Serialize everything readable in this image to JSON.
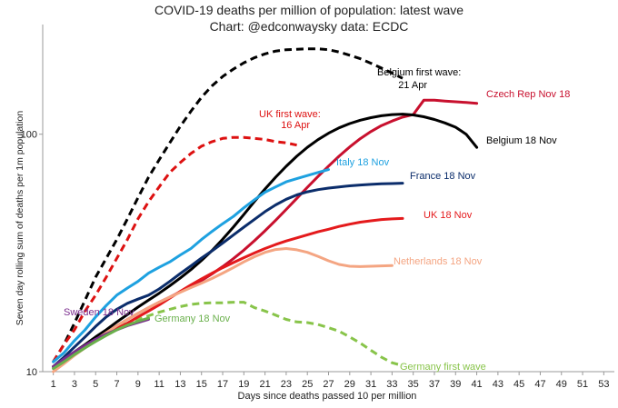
{
  "chart_data": {
    "type": "line",
    "title": "COVID-19 deaths per million of population: latest wave",
    "subtitle": "Chart: @edconwaysky data: ECDC",
    "xlabel": "Days since deaths passed 10 per million",
    "ylabel": "Seven day rolling sum of deaths per 1m population",
    "x_ticks": [
      1,
      3,
      5,
      7,
      9,
      11,
      13,
      15,
      17,
      19,
      21,
      23,
      25,
      27,
      29,
      31,
      33,
      35,
      37,
      39,
      41,
      43,
      45,
      47,
      49,
      51,
      53
    ],
    "xlim": [
      0,
      54
    ],
    "y_scale": "log",
    "ylim": [
      10,
      270
    ],
    "y_ticks": [
      10,
      100
    ],
    "grid": false,
    "legend": "none",
    "series": [
      {
        "name": "Belgium first wave: 21 Apr",
        "color": "#000000",
        "dashed": true,
        "width": 3,
        "x": [
          1,
          2,
          3,
          4,
          5,
          6,
          7,
          8,
          9,
          10,
          11,
          12,
          13,
          14,
          15,
          16,
          17,
          18,
          19,
          20,
          21,
          22,
          23,
          24,
          25,
          26,
          27,
          28,
          29,
          30,
          31,
          32,
          33,
          34
        ],
        "y": [
          11,
          13,
          16,
          20,
          25,
          30,
          36,
          44,
          54,
          66,
          78,
          92,
          108,
          125,
          143,
          160,
          175,
          188,
          200,
          210,
          218,
          224,
          227,
          228,
          229,
          229,
          227,
          222,
          215,
          208,
          199,
          190,
          181,
          172
        ]
      },
      {
        "name": "UK first wave: 16 Apr",
        "color": "#dd1111",
        "dashed": true,
        "width": 3,
        "x": [
          1,
          2,
          3,
          4,
          5,
          6,
          7,
          8,
          9,
          10,
          11,
          12,
          13,
          14,
          15,
          16,
          17,
          18,
          19,
          20,
          21,
          22,
          23,
          24
        ],
        "y": [
          11,
          13,
          15,
          18,
          21,
          25,
          30,
          36,
          44,
          52,
          60,
          69,
          76,
          83,
          89,
          93,
          96,
          97,
          97,
          96,
          95,
          93,
          92,
          90
        ]
      },
      {
        "name": "Germany first wave",
        "color": "#88c44a",
        "dashed": true,
        "width": 3,
        "x": [
          1,
          2,
          3,
          4,
          5,
          6,
          7,
          8,
          9,
          10,
          11,
          12,
          13,
          14,
          15,
          16,
          17,
          18,
          19,
          20,
          21,
          22,
          23,
          24,
          25,
          26,
          27,
          28,
          29,
          30,
          31,
          32,
          33,
          34
        ],
        "y": [
          10.5,
          11.2,
          12,
          12.8,
          13.6,
          14.5,
          15.3,
          16,
          16.6,
          17.2,
          17.8,
          18.3,
          18.8,
          19.2,
          19.4,
          19.5,
          19.5,
          19.6,
          19.6,
          18.6,
          18,
          17.3,
          16.6,
          16.2,
          16.1,
          15.8,
          15.3,
          14.8,
          14,
          13.2,
          12.3,
          11.5,
          10.9,
          10.6
        ]
      },
      {
        "name": "Czech Rep Nov 18",
        "color": "#c8102e",
        "dashed": false,
        "width": 3,
        "x": [
          1,
          2,
          3,
          4,
          5,
          6,
          7,
          8,
          9,
          10,
          11,
          12,
          13,
          14,
          15,
          16,
          17,
          18,
          19,
          20,
          21,
          22,
          23,
          24,
          25,
          26,
          27,
          28,
          29,
          30,
          31,
          32,
          33,
          34,
          35,
          36,
          37,
          38,
          39,
          40,
          41
        ],
        "y": [
          10.5,
          11.2,
          12,
          12.8,
          13.6,
          14.6,
          15.6,
          16.6,
          17.6,
          18.6,
          19.6,
          20.6,
          21.7,
          22.9,
          24.2,
          25.8,
          27.7,
          29.9,
          32.5,
          35.6,
          39.2,
          43.4,
          48.2,
          53.7,
          59.8,
          66.4,
          73.4,
          80.8,
          88.4,
          95.8,
          102.6,
          108.7,
          113.6,
          118,
          121,
          139,
          139,
          138,
          137,
          136,
          135
        ]
      },
      {
        "name": "Belgium 18 Nov",
        "color": "#000000",
        "dashed": false,
        "width": 3,
        "x": [
          1,
          2,
          3,
          4,
          5,
          6,
          7,
          8,
          9,
          10,
          11,
          12,
          13,
          14,
          15,
          16,
          17,
          18,
          19,
          20,
          21,
          22,
          23,
          24,
          25,
          26,
          27,
          28,
          29,
          30,
          31,
          32,
          33,
          34,
          35,
          36,
          37,
          38,
          39,
          40,
          41
        ],
        "y": [
          10.5,
          11.3,
          12.1,
          13,
          14,
          15,
          16.2,
          17.4,
          18.7,
          20,
          21.4,
          23,
          24.8,
          26.9,
          29.4,
          32.4,
          36.1,
          40.6,
          45.9,
          52.1,
          58.8,
          65.9,
          73.3,
          80.8,
          88.1,
          94.9,
          101,
          106.4,
          110.9,
          114.5,
          117.4,
          119.6,
          121,
          121.5,
          120.5,
          118.4,
          115.4,
          111.6,
          107,
          100,
          88
        ]
      },
      {
        "name": "Italy 18 Nov",
        "color": "#1ea1e0",
        "dashed": false,
        "width": 3,
        "x": [
          1,
          2,
          3,
          4,
          5,
          6,
          7,
          8,
          9,
          10,
          11,
          12,
          13,
          14,
          15,
          16,
          17,
          18,
          19,
          20,
          21,
          22,
          23,
          24,
          25,
          26,
          27
        ],
        "y": [
          11,
          12,
          13.5,
          15,
          17,
          19,
          21,
          22.5,
          24,
          26,
          27.5,
          29,
          31,
          33,
          36,
          39,
          42,
          45,
          49,
          53,
          57,
          60,
          63,
          65,
          67,
          69,
          71
        ]
      },
      {
        "name": "France 18 Nov",
        "color": "#0b2d6b",
        "dashed": false,
        "width": 3,
        "x": [
          1,
          2,
          3,
          4,
          5,
          6,
          7,
          8,
          9,
          10,
          11,
          12,
          13,
          14,
          15,
          16,
          17,
          18,
          19,
          20,
          21,
          22,
          23,
          24,
          25,
          26,
          27,
          28,
          29,
          30,
          31,
          32,
          33,
          34
        ],
        "y": [
          10.5,
          11.5,
          12.7,
          14,
          15.5,
          17,
          18.3,
          19.4,
          20.2,
          21,
          22.3,
          24,
          25.9,
          27.9,
          30.1,
          32.3,
          34.8,
          37.6,
          40.6,
          43.8,
          47.2,
          50.4,
          53.2,
          55.5,
          57.2,
          58.4,
          59.3,
          60,
          60.6,
          61.1,
          61.5,
          61.8,
          62,
          62.2
        ]
      },
      {
        "name": "UK 18 Nov",
        "color": "#e41a1c",
        "dashed": false,
        "width": 3,
        "x": [
          1,
          2,
          3,
          4,
          5,
          6,
          7,
          8,
          9,
          10,
          11,
          12,
          13,
          14,
          15,
          16,
          17,
          18,
          19,
          20,
          21,
          22,
          23,
          24,
          25,
          26,
          27,
          28,
          29,
          30,
          31,
          32,
          33,
          34
        ],
        "y": [
          10.5,
          11.2,
          12,
          12.8,
          13.6,
          14.4,
          15.2,
          16,
          17,
          18,
          19.1,
          20.4,
          21.8,
          23.2,
          24.6,
          26,
          27.4,
          28.8,
          30.2,
          31.6,
          33,
          34.3,
          35.5,
          36.6,
          37.7,
          38.8,
          39.8,
          40.9,
          41.8,
          42.6,
          43.2,
          43.7,
          44,
          44.2
        ]
      },
      {
        "name": "Netherlands 18 Nov",
        "color": "#f4a582",
        "dashed": false,
        "width": 3,
        "x": [
          1,
          2,
          3,
          4,
          5,
          6,
          7,
          8,
          9,
          10,
          11,
          12,
          13,
          14,
          15,
          16,
          17,
          18,
          19,
          20,
          21,
          22,
          23,
          24,
          25,
          26,
          27,
          28,
          29,
          30,
          31,
          32,
          33
        ],
        "y": [
          10,
          10.8,
          11.7,
          12.6,
          13.6,
          14.6,
          15.6,
          16.6,
          17.6,
          18.6,
          19.6,
          20.6,
          21.6,
          22.6,
          23.6,
          24.7,
          26,
          27.4,
          29,
          30.5,
          31.8,
          32.7,
          33,
          32.6,
          31.8,
          30.6,
          29.3,
          28.3,
          27.8,
          27.7,
          27.8,
          27.9,
          28
        ]
      },
      {
        "name": "Sweden 18 Nov",
        "color": "#7b2d8e",
        "dashed": false,
        "width": 3,
        "x": [
          1,
          2,
          3,
          4,
          5,
          6,
          7,
          8,
          9,
          10
        ],
        "y": [
          10.5,
          11.3,
          12.1,
          12.9,
          13.7,
          14.4,
          15,
          15.6,
          16.1,
          16.6
        ]
      },
      {
        "name": "Germany 18 Nov",
        "color": "#6ab04c",
        "dashed": false,
        "width": 3,
        "x": [
          1,
          2,
          3,
          4,
          5,
          6,
          7,
          8,
          9,
          10
        ],
        "y": [
          10.3,
          11,
          11.8,
          12.6,
          13.4,
          14.2,
          15,
          15.7,
          16.3,
          16.8
        ]
      }
    ],
    "annotations": [
      {
        "text": "Belgium first wave:",
        "color": "#000000",
        "series": "Belgium first wave: 21 Apr"
      },
      {
        "text": "21 Apr",
        "color": "#000000",
        "series": "Belgium first wave: 21 Apr"
      },
      {
        "text": "UK first wave:",
        "color": "#dd1111",
        "series": "UK first wave: 16 Apr"
      },
      {
        "text": "16 Apr",
        "color": "#dd1111",
        "series": "UK first wave: 16 Apr"
      },
      {
        "text": "Czech Rep Nov 18",
        "color": "#c8102e",
        "series": "Czech Rep Nov 18"
      },
      {
        "text": "Belgium 18 Nov",
        "color": "#000000",
        "series": "Belgium 18 Nov"
      },
      {
        "text": "Italy 18 Nov",
        "color": "#1ea1e0",
        "series": "Italy 18 Nov"
      },
      {
        "text": "France 18 Nov",
        "color": "#0b2d6b",
        "series": "France 18 Nov"
      },
      {
        "text": "UK 18 Nov",
        "color": "#e41a1c",
        "series": "UK 18 Nov"
      },
      {
        "text": "Netherlands 18 Nov",
        "color": "#f4a582",
        "series": "Netherlands 18 Nov"
      },
      {
        "text": "Sweden 18 Nov",
        "color": "#7b2d8e",
        "series": "Sweden 18 Nov"
      },
      {
        "text": "Germany 18 Nov",
        "color": "#6ab04c",
        "series": "Germany 18 Nov"
      },
      {
        "text": "Germany first wave",
        "color": "#88c44a",
        "series": "Germany first wave"
      }
    ]
  }
}
